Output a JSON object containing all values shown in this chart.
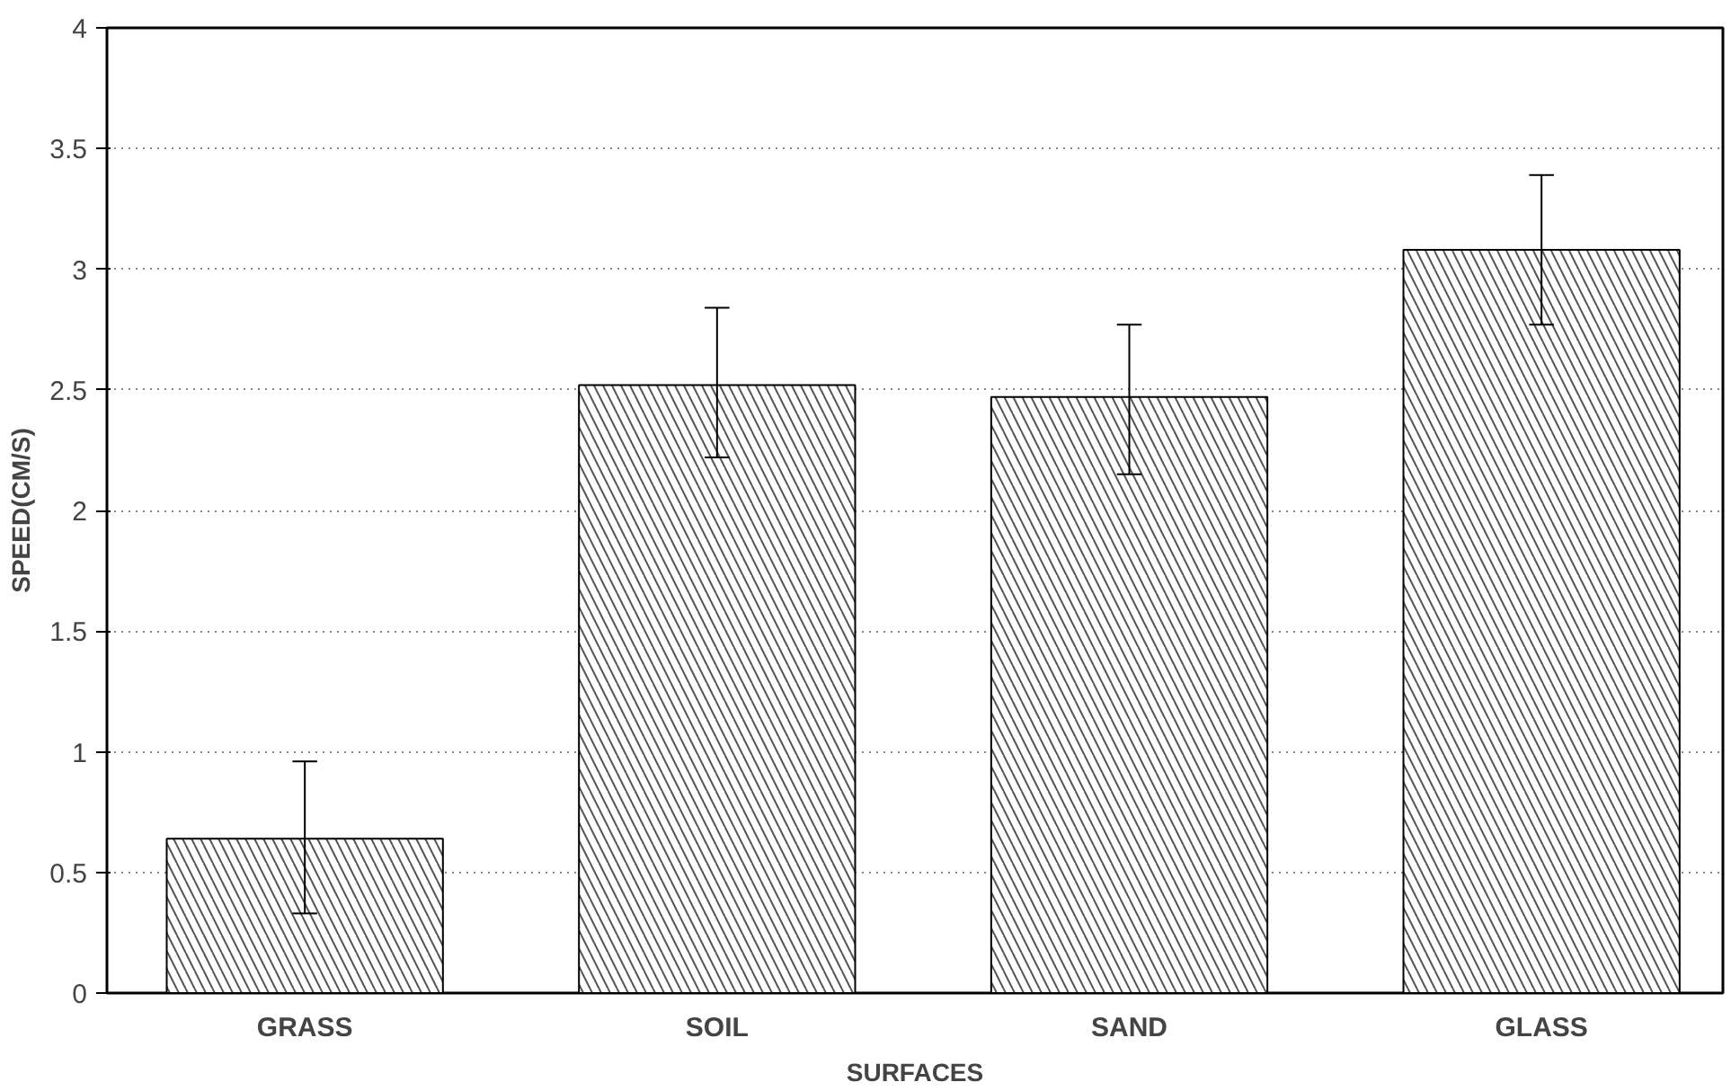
{
  "chart_data": {
    "type": "bar",
    "xlabel": "SURFACES",
    "ylabel": "SPEED(CM/S)",
    "categories": [
      "GRASS",
      "SOIL",
      "SAND",
      "GLASS"
    ],
    "values": [
      0.64,
      2.52,
      2.47,
      3.08
    ],
    "errors": [
      [
        0.33,
        0.96
      ],
      [
        2.22,
        2.84
      ],
      [
        2.15,
        2.77
      ],
      [
        2.77,
        3.39
      ]
    ],
    "color": "#ffffff",
    "ylim": [
      0,
      4
    ],
    "yticks": [
      0,
      0.5,
      1,
      1.5,
      2,
      2.5,
      3,
      3.5,
      4
    ],
    "grid": "y"
  }
}
